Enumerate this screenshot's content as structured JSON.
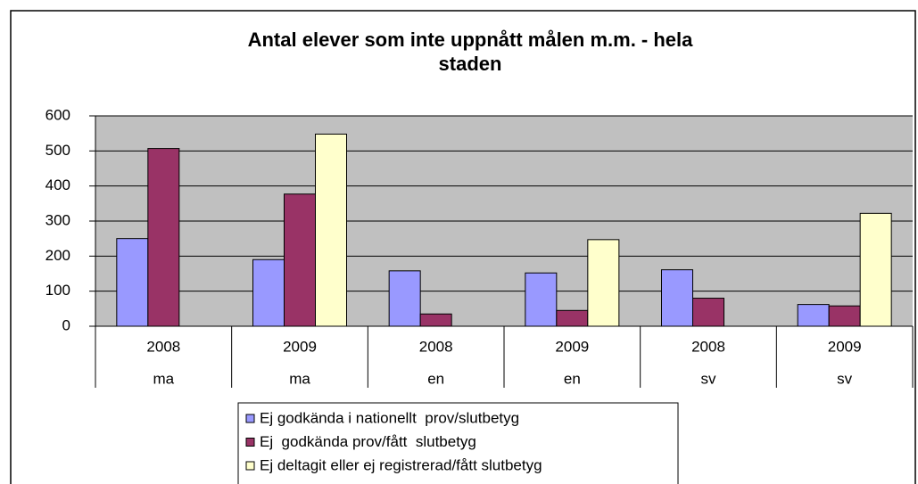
{
  "chart_data": {
    "type": "bar",
    "title": [
      "Antal elever som inte uppnått målen m.m. - hela",
      "staden"
    ],
    "categories": [
      "2008",
      "2009",
      "2008",
      "2009",
      "2008",
      "2009"
    ],
    "category_groups": [
      "ma",
      "ma",
      "en",
      "en",
      "sv",
      "sv"
    ],
    "series": [
      {
        "name": "Ej godkända i nationellt  prov/slutbetyg",
        "color": "#9999ff",
        "values": [
          250,
          190,
          158,
          152,
          161,
          62
        ]
      },
      {
        "name": "Ej  godkända prov/fått  slutbetyg",
        "color": "#993366",
        "values": [
          507,
          377,
          35,
          45,
          80,
          58
        ]
      },
      {
        "name": "Ej deltagit eller ej registrerad/fått slutbetyg",
        "color": "#ffffcc",
        "values": [
          null,
          548,
          null,
          247,
          null,
          322
        ]
      }
    ],
    "ylim": [
      0,
      600
    ],
    "yticks": [
      0,
      100,
      200,
      300,
      400,
      500,
      600
    ],
    "grid": true,
    "plot_background": "#c0c0c0",
    "legend": "bottom"
  }
}
